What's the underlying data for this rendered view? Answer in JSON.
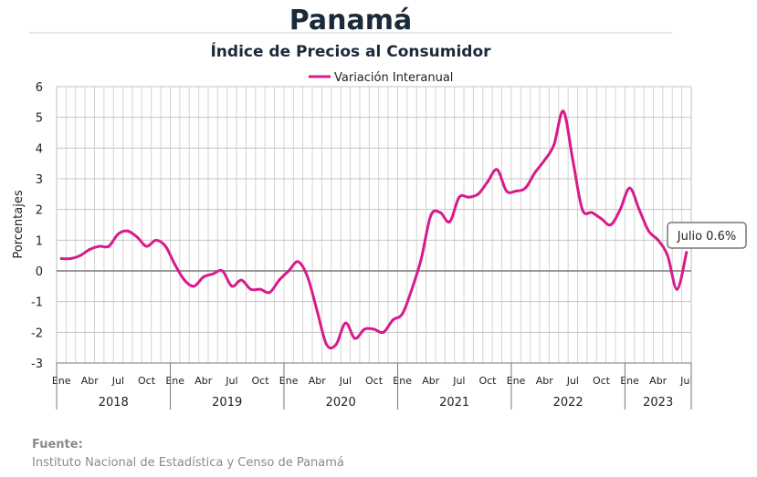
{
  "chart_data": {
    "type": "line",
    "title": "Panamá",
    "subtitle": "Índice de Precios al Consumidor",
    "ylabel": "Porcentajes",
    "ylim": [
      -3,
      6
    ],
    "yticks": [
      "6",
      "5",
      "4",
      "3",
      "2",
      "1",
      "0",
      "-1",
      "-2",
      "-3"
    ],
    "month_labels": [
      "Ene",
      "Abr",
      "Jul",
      "Oct"
    ],
    "last_month_label": "Jul",
    "years": [
      "2018",
      "2019",
      "2020",
      "2021",
      "2022",
      "2023"
    ],
    "legend": "top",
    "grid": true,
    "series": [
      {
        "name": "Variación Interanual",
        "color": "#d81b8c",
        "x_start": "2018-01",
        "values": [
          0.4,
          0.4,
          0.5,
          0.7,
          0.8,
          0.8,
          1.2,
          1.3,
          1.1,
          0.8,
          1.0,
          0.8,
          0.2,
          -0.3,
          -0.5,
          -0.2,
          -0.1,
          0.0,
          -0.5,
          -0.3,
          -0.6,
          -0.6,
          -0.7,
          -0.3,
          0.0,
          0.3,
          -0.2,
          -1.3,
          -2.4,
          -2.4,
          -1.7,
          -2.2,
          -1.9,
          -1.9,
          -2.0,
          -1.6,
          -1.4,
          -0.6,
          0.4,
          1.8,
          1.9,
          1.6,
          2.4,
          2.4,
          2.5,
          2.9,
          3.3,
          2.6,
          2.6,
          2.7,
          3.2,
          3.6,
          4.1,
          5.2,
          3.6,
          2.0,
          1.9,
          1.7,
          1.5,
          2.0,
          2.7,
          2.0,
          1.3,
          1.0,
          0.5,
          -0.6,
          0.6
        ]
      }
    ],
    "annotation": "Julio 0.6%"
  },
  "source": {
    "label": "Fuente:",
    "text": "Instituto Nacional de Estadística y Censo de Panamá"
  }
}
